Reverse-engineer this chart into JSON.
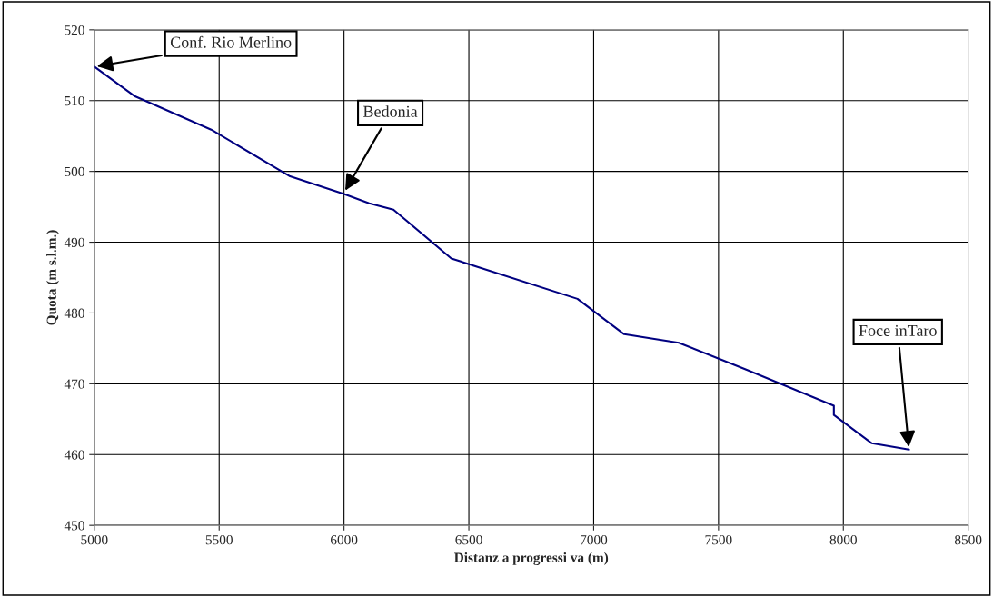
{
  "chart_data": {
    "type": "line",
    "xlabel": "Distanz a progressi va (m)",
    "ylabel": "Quota (m s.l.m.)",
    "x": [
      5000,
      5163,
      5468,
      5784,
      6000,
      6101,
      6198,
      6430,
      6935,
      7122,
      7341,
      7611,
      7962,
      7962,
      8114,
      8263
    ],
    "series": [
      {
        "color": "#000080",
        "values": [
          514.8,
          510.6,
          505.9,
          499.3,
          496.8,
          495.5,
          494.6,
          487.7,
          482.0,
          477.0,
          475.8,
          472.0,
          466.9,
          465.6,
          461.6,
          460.7
        ]
      }
    ],
    "xlim": [
      5000,
      8500
    ],
    "xticks": [
      5000,
      5500,
      6000,
      6500,
      7000,
      7500,
      8000,
      8500
    ],
    "ylim": [
      450,
      520
    ],
    "yticks": [
      450,
      460,
      470,
      480,
      490,
      500,
      510,
      520
    ],
    "grid": true,
    "legend": false,
    "marker": "none",
    "line_style": "solid",
    "annotations": [
      {
        "text": "Conf. Rio Merlino",
        "x": 5000,
        "y": 514.8
      },
      {
        "text": "Bedonia",
        "x": 6000,
        "y": 497
      },
      {
        "text": "Foce inTaro",
        "x": 8263,
        "y": 460.7
      }
    ]
  }
}
